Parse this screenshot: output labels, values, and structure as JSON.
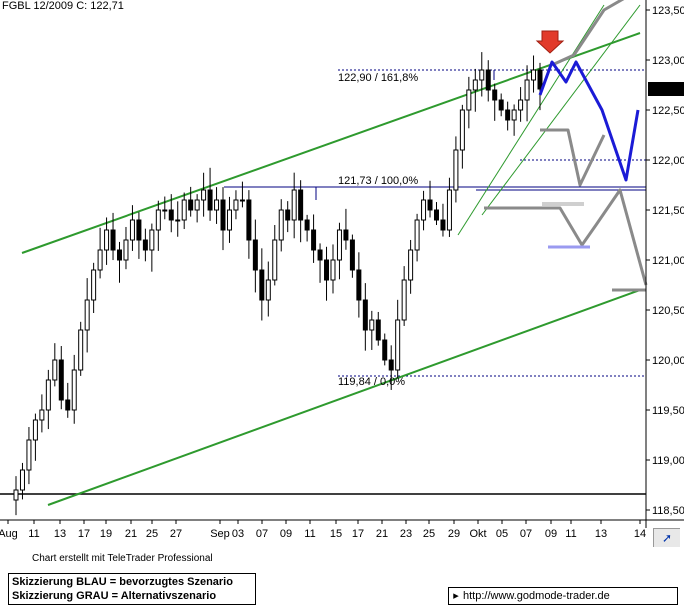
{
  "header": {
    "title": "FGBL 12/2009 C: 122,71"
  },
  "chart_data": {
    "type": "candlestick",
    "title": "FGBL 12/2009 C: 122,71",
    "instrument": "FGBL 12/2009",
    "last_close": 122.71,
    "last_close_label": "122,71",
    "ylim": [
      118.4,
      123.6
    ],
    "x_ticks": [
      "Aug",
      "11",
      "13",
      "17",
      "19",
      "21",
      "25",
      "27",
      "Sep",
      "03",
      "07",
      "09",
      "11",
      "15",
      "17",
      "21",
      "23",
      "25",
      "29",
      "Okt",
      "05",
      "07",
      "09",
      "11",
      "13",
      "14"
    ],
    "y_ticks": [
      {
        "value": 118.5,
        "label": "118,50"
      },
      {
        "value": 119.0,
        "label": "119,00"
      },
      {
        "value": 119.5,
        "label": "119,50"
      },
      {
        "value": 120.0,
        "label": "120,00"
      },
      {
        "value": 120.5,
        "label": "120,50"
      },
      {
        "value": 121.0,
        "label": "121,00"
      },
      {
        "value": 121.5,
        "label": "121,50"
      },
      {
        "value": 122.0,
        "label": "122,00"
      },
      {
        "value": 122.5,
        "label": "122,50"
      },
      {
        "value": 123.0,
        "label": "123,00"
      },
      {
        "value": 123.5,
        "label": "123,50"
      }
    ],
    "price_path": [
      118.7,
      118.9,
      119.2,
      119.4,
      119.5,
      119.8,
      120.0,
      119.6,
      119.5,
      119.9,
      120.3,
      120.6,
      120.9,
      121.1,
      121.3,
      121.1,
      121.0,
      121.2,
      121.4,
      121.2,
      121.1,
      121.3,
      121.5,
      121.5,
      121.4,
      121.4,
      121.6,
      121.5,
      121.6,
      121.7,
      121.5,
      121.6,
      121.3,
      121.5,
      121.6,
      121.6,
      121.2,
      120.9,
      120.6,
      120.8,
      121.2,
      121.5,
      121.4,
      121.7,
      121.4,
      121.3,
      121.1,
      121.0,
      120.8,
      121.0,
      121.3,
      121.2,
      120.9,
      120.6,
      120.3,
      120.4,
      120.2,
      120.0,
      119.9,
      120.4,
      120.8,
      121.1,
      121.4,
      121.6,
      121.5,
      121.4,
      121.3,
      121.7,
      122.1,
      122.5,
      122.7,
      122.8,
      122.9,
      122.7,
      122.6,
      122.5,
      122.4,
      122.5,
      122.6,
      122.8,
      122.9,
      122.71
    ],
    "trend_lines": [
      {
        "name": "upper-channel",
        "from": {
          "x": "Aug",
          "y": 121.07
        },
        "to": {
          "x": "14",
          "y": 123.27
        }
      },
      {
        "name": "lower-channel",
        "from": {
          "x": "11",
          "y": 118.55
        },
        "to": {
          "x": "14",
          "y": 120.7
        }
      }
    ],
    "horizontal_lines": [
      {
        "name": "fib-161",
        "value": 122.9,
        "label": "122,90 / 161,8%",
        "style": "dotted"
      },
      {
        "name": "fib-100",
        "value": 121.73,
        "label": "121,73 / 100,0%",
        "style": "solid"
      },
      {
        "name": "fib-0",
        "value": 119.84,
        "label": "119,84 / 0,0%",
        "style": "dotted"
      },
      {
        "name": "low-line",
        "value": 118.66,
        "label": "",
        "style": "solid"
      },
      {
        "name": "level-122",
        "value": 122.0,
        "label": "",
        "style": "dotted"
      }
    ],
    "scenarios": {
      "blue": "Skizzierung BLAU = bevorzugtes Szenario",
      "grey": "Skizzierung GRAU = Alternativszenario"
    }
  },
  "footer": {
    "credit": "Chart erstellt mit TeleTrader Professional",
    "legend_blue": "Skizzierung BLAU = bevorzugtes Szenario",
    "legend_grey": "Skizzierung GRAU = Alternativszenario",
    "url": "http://www.godmode-trader.de"
  },
  "colors": {
    "channel": "#2e9a2e",
    "blue_scenario": "#1b1bd6",
    "grey_scenario": "#8a8a8a",
    "candles": "#000000",
    "marker": "#e23a2a",
    "fib_line": "#000080"
  }
}
